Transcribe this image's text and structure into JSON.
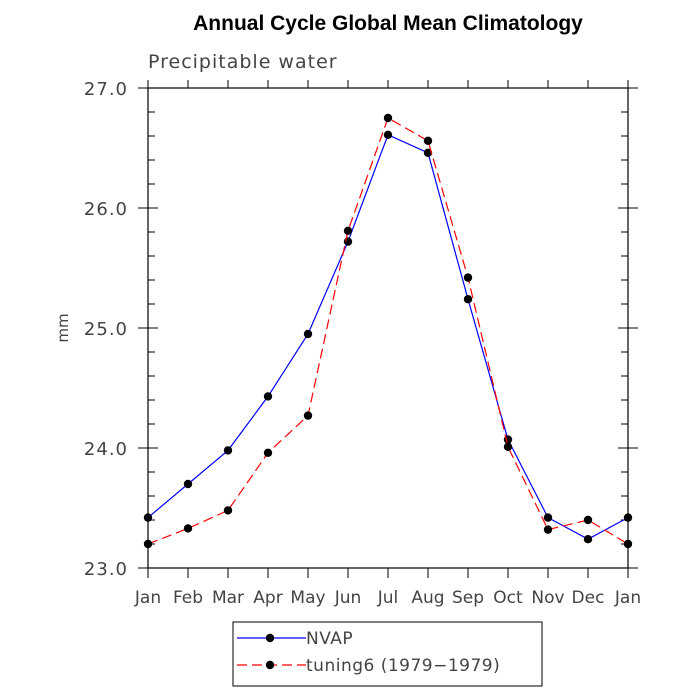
{
  "chart_data": {
    "type": "line",
    "title": "Annual Cycle Global Mean Climatology",
    "subtitle": "Precipitable water",
    "xlabel": "",
    "ylabel": "mm",
    "categories": [
      "Jan",
      "Feb",
      "Mar",
      "Apr",
      "May",
      "Jun",
      "Jul",
      "Aug",
      "Sep",
      "Oct",
      "Nov",
      "Dec",
      "Jan"
    ],
    "ylim": [
      23.0,
      27.0
    ],
    "yticks": [
      23.0,
      24.0,
      25.0,
      26.0,
      27.0
    ],
    "ytick_labels": [
      "23.0",
      "24.0",
      "25.0",
      "26.0",
      "27.0"
    ],
    "grid": false,
    "legend_position": "bottom",
    "series": [
      {
        "name": "NVAP",
        "color": "#0000ff",
        "dash": "solid",
        "values": [
          23.42,
          23.7,
          23.98,
          24.43,
          24.95,
          25.72,
          26.61,
          26.46,
          25.24,
          24.07,
          23.42,
          23.24,
          23.42
        ]
      },
      {
        "name": "tuning6 (1979−1979)",
        "color": "#ff0000",
        "dash": "dashed",
        "values": [
          23.2,
          23.33,
          23.48,
          23.96,
          24.27,
          25.81,
          26.75,
          26.56,
          25.42,
          24.01,
          23.32,
          23.4,
          23.2
        ]
      }
    ]
  }
}
